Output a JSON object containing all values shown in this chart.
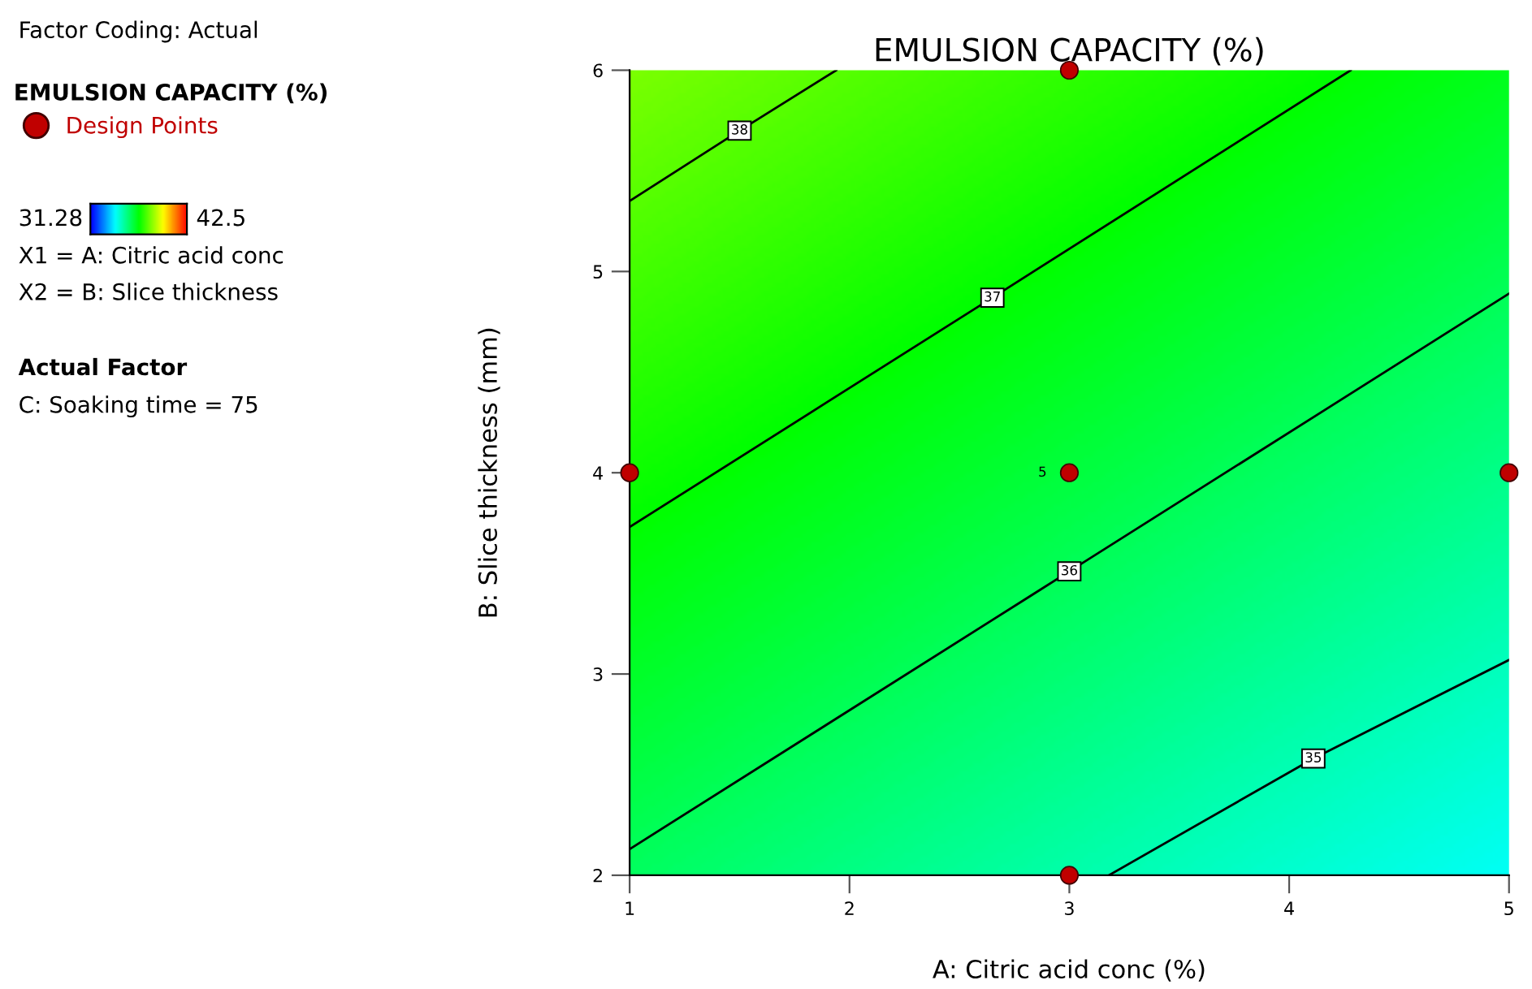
{
  "chart_data": {
    "type": "line",
    "title": "EMULSION CAPACITY (%)",
    "xlabel": "A: Citric acid conc (%)",
    "ylabel": "B: Slice thickness (mm)",
    "legend_title": "EMULSION CAPACITY (%)",
    "legend": "left",
    "xlim": [
      1,
      5
    ],
    "ylim": [
      2,
      6
    ],
    "xticks": [
      1,
      2,
      3,
      4,
      5
    ],
    "yticks": [
      2,
      3,
      4,
      5,
      6
    ],
    "grid": false,
    "series": [
      {
        "type": "line",
        "name": "38",
        "color": "#000000",
        "x": [
          1,
          1.5,
          1.94
        ],
        "values": [
          5.35,
          5.7,
          6
        ]
      },
      {
        "type": "line",
        "name": "37",
        "color": "#000000",
        "x": [
          1,
          2.65,
          4.28
        ],
        "values": [
          3.73,
          4.87,
          6
        ]
      },
      {
        "type": "line",
        "name": "36",
        "color": "#000000",
        "x": [
          1,
          3,
          5
        ],
        "values": [
          2.13,
          3.51,
          4.89
        ]
      },
      {
        "type": "line",
        "name": "35",
        "color": "#000000",
        "x": [
          3.18,
          4.11,
          5
        ],
        "values": [
          2,
          2.58,
          3.07
        ]
      },
      {
        "type": "scatter",
        "name": "Design Points",
        "color": "#c00000",
        "marker": "circle",
        "x": [
          1,
          3,
          3,
          3,
          5
        ],
        "values": [
          4,
          6,
          4,
          2,
          4
        ]
      }
    ],
    "annotations": [
      "Factor Coding: Actual",
      "31.28",
      "42.5",
      "X1 = A: Citric acid conc",
      "X2 = B: Slice thickness",
      "Actual Factor",
      "C: Soaking time = 75",
      {
        "text": "5",
        "x": 3,
        "y": 4
      }
    ]
  }
}
